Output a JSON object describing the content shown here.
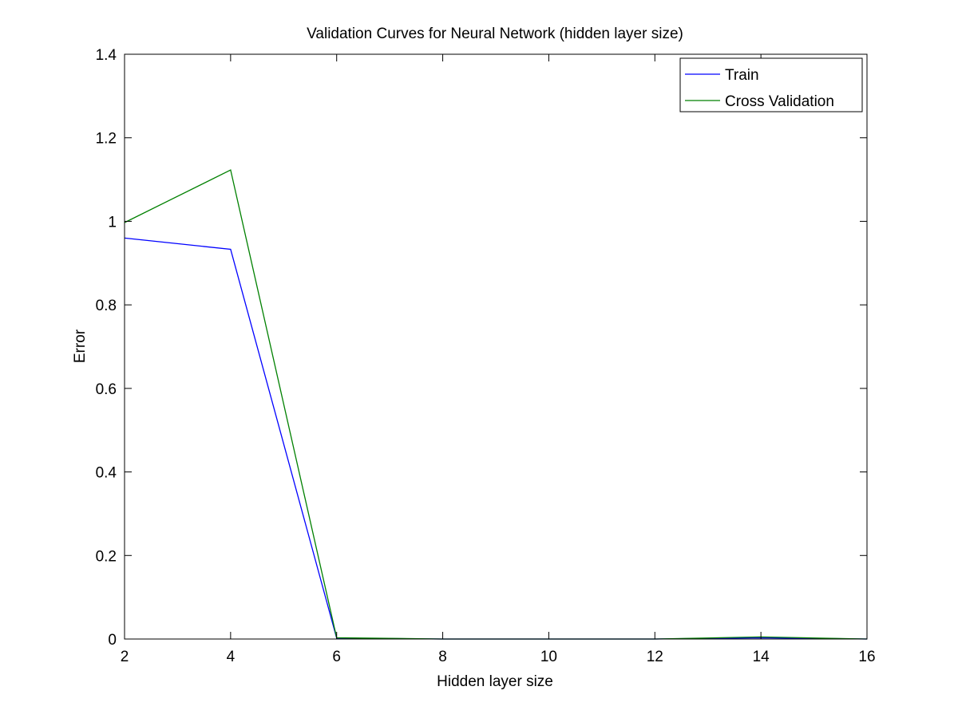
{
  "chart_data": {
    "type": "line",
    "title": "Validation Curves for Neural Network (hidden layer size)",
    "xlabel": "Hidden layer size",
    "ylabel": "Error",
    "xlim": [
      2,
      16
    ],
    "ylim": [
      0,
      1.4
    ],
    "xticks": [
      2,
      4,
      6,
      8,
      10,
      12,
      14,
      16
    ],
    "yticks": [
      0,
      0.2,
      0.4,
      0.6,
      0.8,
      1,
      1.2,
      1.4
    ],
    "grid": false,
    "legend_position": "top-right",
    "x": [
      2,
      4,
      6,
      8,
      10,
      12,
      14,
      16
    ],
    "series": [
      {
        "name": "Train",
        "color": "#0000ff",
        "values": [
          0.96,
          0.933,
          0.002,
          0.0,
          0.0,
          0.0,
          0.003,
          0.0
        ]
      },
      {
        "name": "Cross Validation",
        "color": "#008000",
        "values": [
          0.997,
          1.123,
          0.003,
          0.0,
          0.0,
          0.0,
          0.005,
          0.0
        ]
      }
    ]
  }
}
